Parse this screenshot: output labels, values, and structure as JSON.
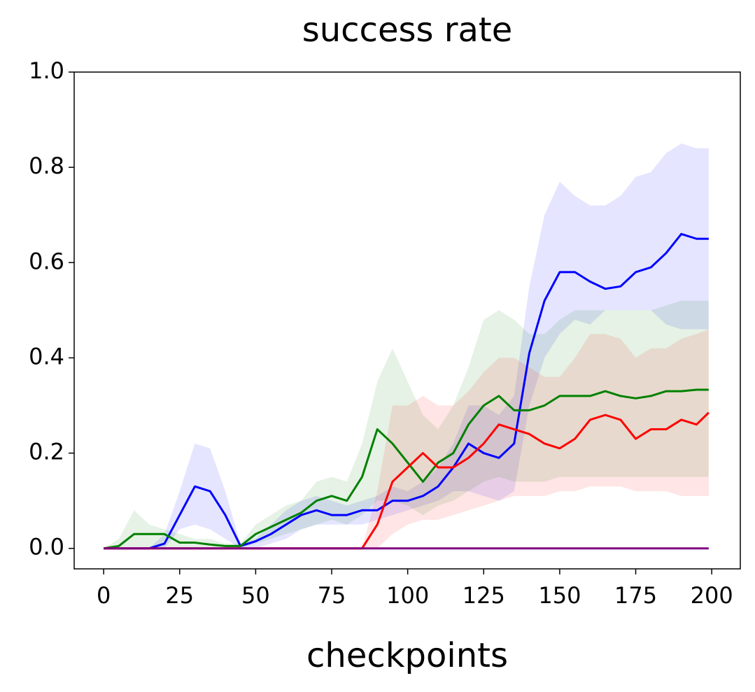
{
  "chart_data": {
    "type": "line",
    "title": "success rate",
    "xlabel": "checkpoints",
    "x": [
      0,
      5,
      10,
      15,
      20,
      25,
      30,
      35,
      40,
      45,
      50,
      55,
      60,
      65,
      70,
      75,
      80,
      85,
      90,
      95,
      100,
      105,
      110,
      115,
      120,
      125,
      130,
      135,
      140,
      145,
      150,
      155,
      160,
      165,
      170,
      175,
      180,
      185,
      190,
      195,
      199
    ],
    "series": [
      {
        "color": "#0000ff",
        "values": [
          0,
          0,
          0,
          0,
          0.01,
          0.07,
          0.13,
          0.12,
          0.07,
          0.005,
          0.015,
          0.03,
          0.05,
          0.07,
          0.08,
          0.07,
          0.07,
          0.08,
          0.08,
          0.1,
          0.1,
          0.11,
          0.13,
          0.17,
          0.22,
          0.2,
          0.19,
          0.22,
          0.41,
          0.52,
          0.58,
          0.58,
          0.56,
          0.545,
          0.55,
          0.58,
          0.59,
          0.62,
          0.66,
          0.65,
          0.65
        ],
        "lower": [
          0,
          0,
          0,
          0,
          0,
          0.04,
          0.05,
          0.04,
          0.02,
          0,
          0,
          0.01,
          0.02,
          0.04,
          0.05,
          0.05,
          0.05,
          0.05,
          0.06,
          0.07,
          0.08,
          0.09,
          0.1,
          0.12,
          0.12,
          0.11,
          0.1,
          0.12,
          0.3,
          0.4,
          0.45,
          0.48,
          0.47,
          0.5,
          0.5,
          0.5,
          0.5,
          0.47,
          0.46,
          0.46,
          0.46
        ],
        "upper": [
          0,
          0,
          0,
          0,
          0.03,
          0.12,
          0.22,
          0.21,
          0.12,
          0.01,
          0.02,
          0.05,
          0.08,
          0.1,
          0.11,
          0.1,
          0.09,
          0.1,
          0.11,
          0.13,
          0.12,
          0.14,
          0.17,
          0.22,
          0.3,
          0.3,
          0.28,
          0.32,
          0.55,
          0.7,
          0.77,
          0.74,
          0.72,
          0.72,
          0.74,
          0.78,
          0.79,
          0.83,
          0.85,
          0.84,
          0.84
        ]
      },
      {
        "color": "#008000",
        "values": [
          0,
          0.005,
          0.03,
          0.03,
          0.03,
          0.012,
          0.012,
          0.008,
          0.005,
          0.005,
          0.03,
          0.045,
          0.06,
          0.075,
          0.1,
          0.11,
          0.1,
          0.15,
          0.25,
          0.22,
          0.18,
          0.14,
          0.18,
          0.2,
          0.26,
          0.3,
          0.32,
          0.29,
          0.29,
          0.3,
          0.32,
          0.32,
          0.32,
          0.33,
          0.32,
          0.315,
          0.32,
          0.33,
          0.33,
          0.333,
          0.333
        ],
        "lower": [
          0,
          0,
          0,
          0,
          0,
          0,
          0,
          0,
          0,
          0,
          0.01,
          0.02,
          0.03,
          0.04,
          0.05,
          0.06,
          0.05,
          0.07,
          0.1,
          0.1,
          0.09,
          0.07,
          0.09,
          0.1,
          0.12,
          0.14,
          0.15,
          0.14,
          0.14,
          0.14,
          0.15,
          0.15,
          0.15,
          0.15,
          0.15,
          0.15,
          0.15,
          0.15,
          0.15,
          0.15,
          0.15
        ],
        "upper": [
          0,
          0.02,
          0.08,
          0.05,
          0.04,
          0.03,
          0.02,
          0.02,
          0.01,
          0.01,
          0.05,
          0.07,
          0.09,
          0.1,
          0.14,
          0.15,
          0.14,
          0.22,
          0.35,
          0.42,
          0.35,
          0.28,
          0.25,
          0.3,
          0.38,
          0.48,
          0.5,
          0.48,
          0.45,
          0.45,
          0.48,
          0.5,
          0.5,
          0.5,
          0.5,
          0.5,
          0.5,
          0.51,
          0.52,
          0.52,
          0.52
        ]
      },
      {
        "color": "#ff0000",
        "values": [
          0,
          0,
          0,
          0,
          0,
          0,
          0,
          0,
          0,
          0,
          0,
          0,
          0,
          0,
          0,
          0,
          0,
          0,
          0.05,
          0.14,
          0.17,
          0.2,
          0.17,
          0.17,
          0.19,
          0.22,
          0.26,
          0.25,
          0.24,
          0.22,
          0.21,
          0.23,
          0.27,
          0.28,
          0.27,
          0.23,
          0.25,
          0.25,
          0.27,
          0.26,
          0.285
        ],
        "lower": [
          0,
          0,
          0,
          0,
          0,
          0,
          0,
          0,
          0,
          0,
          0,
          0,
          0,
          0,
          0,
          0,
          0,
          0,
          0,
          0.03,
          0.05,
          0.06,
          0.06,
          0.07,
          0.08,
          0.09,
          0.1,
          0.11,
          0.11,
          0.11,
          0.12,
          0.12,
          0.13,
          0.13,
          0.13,
          0.12,
          0.12,
          0.12,
          0.11,
          0.11,
          0.11
        ],
        "upper": [
          0,
          0,
          0,
          0,
          0,
          0,
          0,
          0,
          0,
          0,
          0,
          0,
          0,
          0,
          0,
          0,
          0,
          0,
          0.12,
          0.3,
          0.3,
          0.32,
          0.3,
          0.3,
          0.33,
          0.37,
          0.4,
          0.4,
          0.38,
          0.36,
          0.36,
          0.4,
          0.45,
          0.45,
          0.44,
          0.4,
          0.42,
          0.42,
          0.44,
          0.45,
          0.46
        ]
      },
      {
        "color": "#800080",
        "values": [
          0,
          0,
          0,
          0,
          0,
          0,
          0,
          0,
          0,
          0,
          0,
          0,
          0,
          0,
          0,
          0,
          0,
          0,
          0,
          0,
          0,
          0,
          0,
          0,
          0,
          0,
          0,
          0,
          0,
          0,
          0,
          0,
          0,
          0,
          0,
          0,
          0,
          0,
          0,
          0,
          0
        ]
      }
    ],
    "xlim": [
      -9.7,
      209.4
    ],
    "ylim": [
      -0.043,
      1.0
    ],
    "xticks": [
      0,
      25,
      50,
      75,
      100,
      125,
      150,
      175,
      200
    ],
    "yticks": [
      {
        "value": 0,
        "label": "0.0"
      },
      0.2,
      0.4,
      0.6,
      0.8,
      {
        "value": 1,
        "label": "1.0"
      }
    ]
  }
}
